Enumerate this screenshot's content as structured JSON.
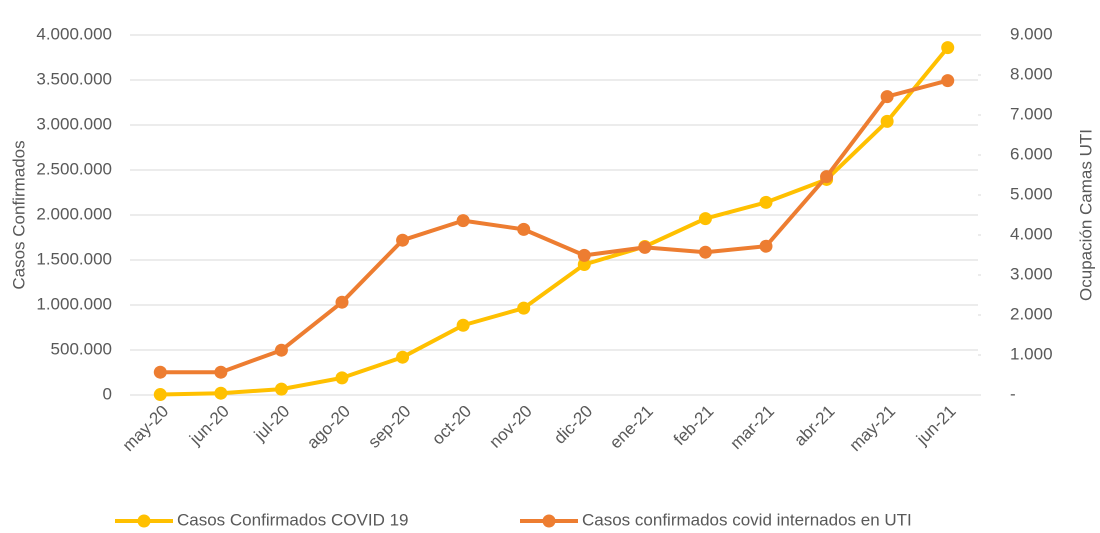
{
  "chart_data": {
    "type": "line",
    "y_label": "Casos Confirmados",
    "y2_label": "Ocupación Camas UTI",
    "categories": [
      "may-20",
      "jun-20",
      "jul-20",
      "ago-20",
      "sep-20",
      "oct-20",
      "nov-20",
      "dic-20",
      "ene-21",
      "feb-21",
      "mar-21",
      "abr-21",
      "may-21",
      "jun-21"
    ],
    "series": [
      {
        "name": "Casos Confirmados COVID 19",
        "color": "#ffc000",
        "values": [
          5000,
          20000,
          65000,
          190000,
          420000,
          775000,
          965000,
          1450000,
          1650000,
          1960000,
          2140000,
          2395000,
          3040000,
          3860000
        ]
      },
      {
        "name": "Casos confirmados covid internados en UTI",
        "color": "#ed7d31",
        "axis": "y2",
        "values": [
          570,
          570,
          1120,
          2320,
          3870,
          4360,
          4140,
          3490,
          3690,
          3570,
          3720,
          5460,
          7460,
          7860
        ]
      }
    ],
    "ylim": [
      0,
      4000000
    ],
    "yticks": [
      0,
      {
        "value": 500000,
        "label": "500.000"
      },
      {
        "value": 1000000,
        "label": "1.000.000"
      },
      {
        "value": 1500000,
        "label": "1.500.000"
      },
      {
        "value": 2000000,
        "label": "2.000.000"
      },
      {
        "value": 2500000,
        "label": "2.500.000"
      },
      {
        "value": 3000000,
        "label": "3.000.000"
      },
      {
        "value": 3500000,
        "label": "3.500.000"
      },
      {
        "value": 4000000,
        "label": "4.000.000"
      }
    ],
    "y2lim": [
      0,
      9000
    ],
    "y2ticks": [
      {
        "value": 0,
        "label": "-"
      },
      {
        "value": 1000,
        "label": "1.000"
      },
      {
        "value": 2000,
        "label": "2.000"
      },
      {
        "value": 3000,
        "label": "3.000"
      },
      {
        "value": 4000,
        "label": "4.000"
      },
      {
        "value": 5000,
        "label": "5.000"
      },
      {
        "value": 6000,
        "label": "6.000"
      },
      {
        "value": 7000,
        "label": "7.000"
      },
      {
        "value": 8000,
        "label": "8.000"
      },
      {
        "value": 9000,
        "label": "9.000"
      }
    ],
    "grid": true,
    "legend": "bottom"
  }
}
